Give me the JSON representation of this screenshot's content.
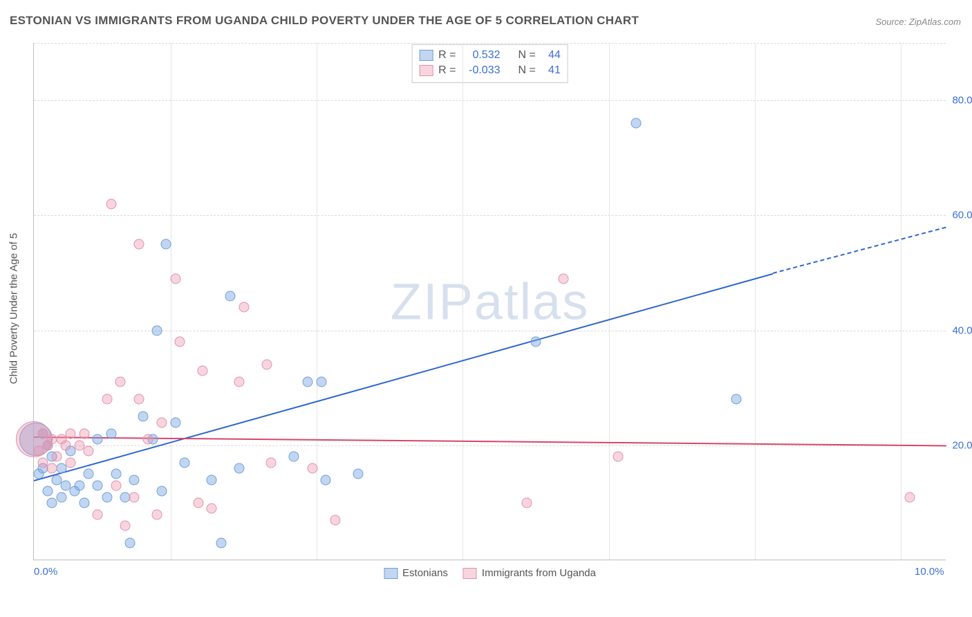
{
  "title": "ESTONIAN VS IMMIGRANTS FROM UGANDA CHILD POVERTY UNDER THE AGE OF 5 CORRELATION CHART",
  "source_label": "Source: ",
  "source_value": "ZipAtlas.com",
  "y_axis_title": "Child Poverty Under the Age of 5",
  "watermark": "ZIPatlas",
  "chart": {
    "type": "scatter",
    "xlim": [
      0,
      10
    ],
    "ylim": [
      0,
      90
    ],
    "xtick_labels": [
      {
        "value": 0,
        "label": "0.0%"
      },
      {
        "value": 10,
        "label": "10.0%"
      }
    ],
    "ytick_labels": [
      {
        "value": 20,
        "label": "20.0%"
      },
      {
        "value": 40,
        "label": "40.0%"
      },
      {
        "value": 60,
        "label": "60.0%"
      },
      {
        "value": 80,
        "label": "80.0%"
      }
    ],
    "grid_h_values": [
      20,
      40,
      60,
      80,
      90
    ],
    "grid_v_values": [
      1.5,
      3.1,
      4.7,
      6.3,
      7.9,
      9.5
    ],
    "background_color": "#ffffff",
    "grid_color": "#d9d9d9",
    "axis_color": "#bfbfbf",
    "tick_label_color": "#3b6fd6",
    "title_color": "#555555",
    "title_fontsize": 17,
    "label_fontsize": 15
  },
  "series": {
    "estonians": {
      "label": "Estonians",
      "fill_color": "rgba(120,165,223,0.45)",
      "stroke_color": "#6e9fd8",
      "line_color": "#2f66d0",
      "reg_line": {
        "x1": 0,
        "y1": 14,
        "x2": 8.1,
        "y2": 50,
        "dashed_to_x": 10,
        "dashed_to_y": 58
      },
      "large_points": [
        {
          "x": 0.02,
          "y": 21,
          "r": 24
        }
      ],
      "points": [
        {
          "x": 0.05,
          "y": 15
        },
        {
          "x": 0.1,
          "y": 16
        },
        {
          "x": 0.1,
          "y": 22
        },
        {
          "x": 0.15,
          "y": 12
        },
        {
          "x": 0.15,
          "y": 20
        },
        {
          "x": 0.2,
          "y": 10
        },
        {
          "x": 0.2,
          "y": 18
        },
        {
          "x": 0.25,
          "y": 14
        },
        {
          "x": 0.3,
          "y": 11
        },
        {
          "x": 0.3,
          "y": 16
        },
        {
          "x": 0.35,
          "y": 13
        },
        {
          "x": 0.4,
          "y": 19
        },
        {
          "x": 0.45,
          "y": 12
        },
        {
          "x": 0.5,
          "y": 13
        },
        {
          "x": 0.55,
          "y": 10
        },
        {
          "x": 0.6,
          "y": 15
        },
        {
          "x": 0.7,
          "y": 13
        },
        {
          "x": 0.7,
          "y": 21
        },
        {
          "x": 0.8,
          "y": 11
        },
        {
          "x": 0.85,
          "y": 22
        },
        {
          "x": 0.9,
          "y": 15
        },
        {
          "x": 1.0,
          "y": 11
        },
        {
          "x": 1.05,
          "y": 3
        },
        {
          "x": 1.1,
          "y": 14
        },
        {
          "x": 1.2,
          "y": 25
        },
        {
          "x": 1.3,
          "y": 21
        },
        {
          "x": 1.35,
          "y": 40
        },
        {
          "x": 1.4,
          "y": 12
        },
        {
          "x": 1.45,
          "y": 55
        },
        {
          "x": 1.55,
          "y": 24
        },
        {
          "x": 1.65,
          "y": 17
        },
        {
          "x": 1.95,
          "y": 14
        },
        {
          "x": 2.05,
          "y": 3
        },
        {
          "x": 2.15,
          "y": 46
        },
        {
          "x": 2.25,
          "y": 16
        },
        {
          "x": 2.85,
          "y": 18
        },
        {
          "x": 3.0,
          "y": 31
        },
        {
          "x": 3.15,
          "y": 31
        },
        {
          "x": 3.2,
          "y": 14
        },
        {
          "x": 3.55,
          "y": 15
        },
        {
          "x": 5.5,
          "y": 38
        },
        {
          "x": 6.6,
          "y": 76
        },
        {
          "x": 7.7,
          "y": 28
        }
      ]
    },
    "uganda": {
      "label": "Immigrants from Uganda",
      "fill_color": "rgba(235,150,175,0.40)",
      "stroke_color": "#e291aa",
      "line_color": "#d9446d",
      "reg_line": {
        "x1": 0,
        "y1": 21.5,
        "x2": 10,
        "y2": 20
      },
      "large_points": [
        {
          "x": 0.0,
          "y": 21,
          "r": 26
        }
      ],
      "points": [
        {
          "x": 0.05,
          "y": 19
        },
        {
          "x": 0.1,
          "y": 17
        },
        {
          "x": 0.1,
          "y": 22
        },
        {
          "x": 0.15,
          "y": 20
        },
        {
          "x": 0.2,
          "y": 16
        },
        {
          "x": 0.2,
          "y": 21
        },
        {
          "x": 0.25,
          "y": 18
        },
        {
          "x": 0.3,
          "y": 21
        },
        {
          "x": 0.35,
          "y": 20
        },
        {
          "x": 0.4,
          "y": 17
        },
        {
          "x": 0.4,
          "y": 22
        },
        {
          "x": 0.5,
          "y": 20
        },
        {
          "x": 0.55,
          "y": 22
        },
        {
          "x": 0.6,
          "y": 19
        },
        {
          "x": 0.7,
          "y": 8
        },
        {
          "x": 0.8,
          "y": 28
        },
        {
          "x": 0.85,
          "y": 62
        },
        {
          "x": 0.9,
          "y": 13
        },
        {
          "x": 0.95,
          "y": 31
        },
        {
          "x": 1.0,
          "y": 6
        },
        {
          "x": 1.1,
          "y": 11
        },
        {
          "x": 1.15,
          "y": 55
        },
        {
          "x": 1.15,
          "y": 28
        },
        {
          "x": 1.25,
          "y": 21
        },
        {
          "x": 1.35,
          "y": 8
        },
        {
          "x": 1.4,
          "y": 24
        },
        {
          "x": 1.55,
          "y": 49
        },
        {
          "x": 1.6,
          "y": 38
        },
        {
          "x": 1.8,
          "y": 10
        },
        {
          "x": 1.85,
          "y": 33
        },
        {
          "x": 1.95,
          "y": 9
        },
        {
          "x": 2.25,
          "y": 31
        },
        {
          "x": 2.3,
          "y": 44
        },
        {
          "x": 2.55,
          "y": 34
        },
        {
          "x": 2.6,
          "y": 17
        },
        {
          "x": 3.05,
          "y": 16
        },
        {
          "x": 3.3,
          "y": 7
        },
        {
          "x": 5.4,
          "y": 10
        },
        {
          "x": 5.8,
          "y": 49
        },
        {
          "x": 6.4,
          "y": 18
        },
        {
          "x": 9.6,
          "y": 11
        }
      ]
    }
  },
  "legend_top": {
    "rows": [
      {
        "series": "estonians",
        "r_label": "R =",
        "r_value": "0.532",
        "n_label": "N =",
        "n_value": "44"
      },
      {
        "series": "uganda",
        "r_label": "R =",
        "r_value": "-0.033",
        "n_label": "N =",
        "n_value": "41"
      }
    ]
  },
  "legend_bottom": [
    {
      "series": "estonians"
    },
    {
      "series": "uganda"
    }
  ]
}
